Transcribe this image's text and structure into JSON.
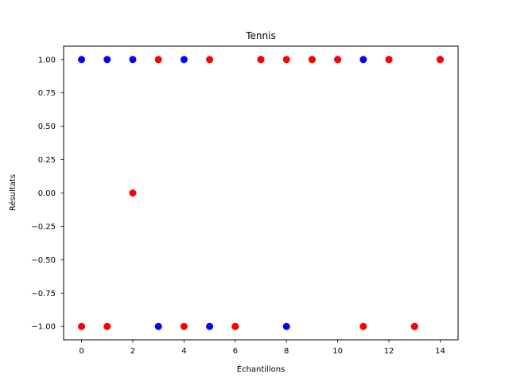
{
  "chart_data": {
    "type": "scatter",
    "title": "Tennis",
    "xlabel": "Échantillons",
    "ylabel": "Résultats",
    "xlim": [
      -0.7,
      14.7
    ],
    "ylim": [
      -1.1,
      1.1
    ],
    "xticks": [
      0,
      2,
      4,
      6,
      8,
      10,
      12,
      14
    ],
    "xtick_labels": [
      "0",
      "2",
      "4",
      "6",
      "8",
      "10",
      "12",
      "14"
    ],
    "yticks": [
      1.0,
      0.75,
      0.5,
      0.25,
      0.0,
      -0.25,
      -0.5,
      -0.75,
      -1.0
    ],
    "ytick_labels": [
      "1.00",
      "0.75",
      "0.50",
      "0.25",
      "0.00",
      "−0.25",
      "−0.50",
      "−0.75",
      "−1.00"
    ],
    "grid": false,
    "series": [
      {
        "color": "#0000ff",
        "points": [
          {
            "x": 0,
            "y": 1
          },
          {
            "x": 1,
            "y": 1
          },
          {
            "x": 2,
            "y": 1
          },
          {
            "x": 3,
            "y": -1
          },
          {
            "x": 4,
            "y": 1
          },
          {
            "x": 5,
            "y": -1
          },
          {
            "x": 6,
            "y": -1
          },
          {
            "x": 7,
            "y": 1
          },
          {
            "x": 8,
            "y": -1
          },
          {
            "x": 9,
            "y": 1
          },
          {
            "x": 10,
            "y": 1
          },
          {
            "x": 11,
            "y": 1
          },
          {
            "x": 12,
            "y": 1
          },
          {
            "x": 13,
            "y": -1
          },
          {
            "x": 14,
            "y": 1
          }
        ]
      },
      {
        "color": "#ff0000",
        "points": [
          {
            "x": 0,
            "y": -1
          },
          {
            "x": 1,
            "y": -1
          },
          {
            "x": 2,
            "y": 0
          },
          {
            "x": 3,
            "y": 1
          },
          {
            "x": 4,
            "y": -1
          },
          {
            "x": 5,
            "y": 1
          },
          {
            "x": 6,
            "y": -1
          },
          {
            "x": 7,
            "y": 1
          },
          {
            "x": 8,
            "y": 1
          },
          {
            "x": 9,
            "y": 1
          },
          {
            "x": 10,
            "y": 1
          },
          {
            "x": 11,
            "y": -1
          },
          {
            "x": 12,
            "y": 1
          },
          {
            "x": 13,
            "y": -1
          },
          {
            "x": 14,
            "y": 1
          }
        ]
      }
    ]
  }
}
